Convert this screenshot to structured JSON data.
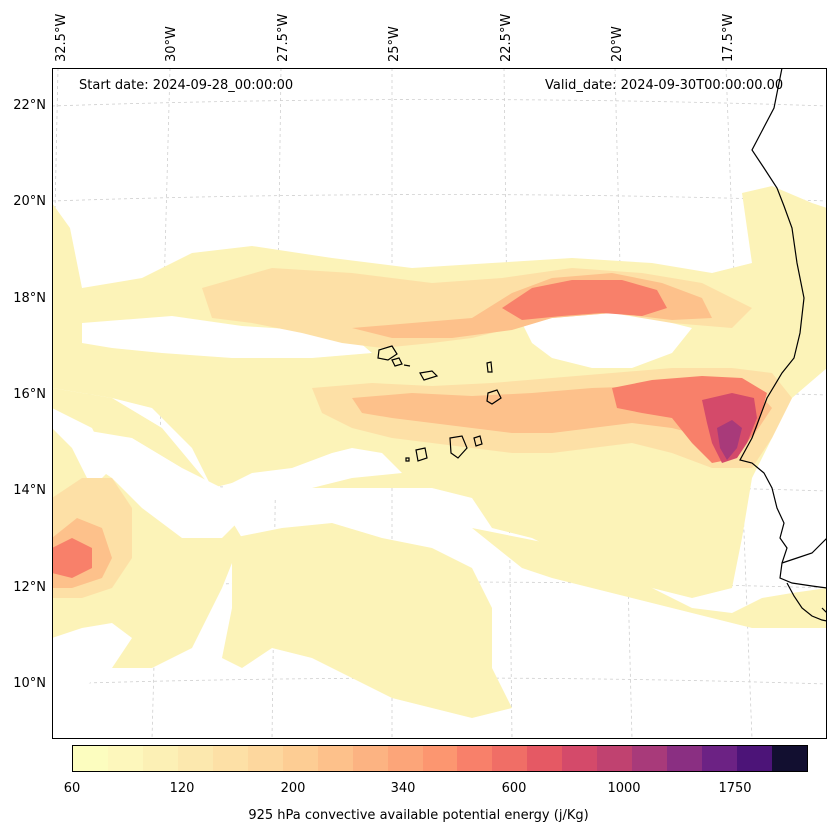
{
  "header": {
    "start_date": "Start date: 2024-09-28_00:00:00",
    "valid_date": "Valid_date: 2024-09-30T00:00:00.00"
  },
  "longitude_labels": [
    "32.5°W",
    "30°W",
    "27.5°W",
    "25°W",
    "22.5°W",
    "20°W",
    "17.5°W"
  ],
  "latitude_labels": [
    "22°N",
    "20°N",
    "18°N",
    "16°N",
    "14°N",
    "12°N",
    "10°N"
  ],
  "colorbar": {
    "label": "925 hPa convective available potential energy (j/Kg)",
    "tick_labels": [
      "60",
      "120",
      "200",
      "340",
      "600",
      "1000",
      "1750"
    ],
    "colors": [
      "#fcfdbf",
      "#fdf7bc",
      "#fcf0b5",
      "#fce8ae",
      "#fde0a6",
      "#fdd79e",
      "#fdcd94",
      "#fdc18b",
      "#fcb382",
      "#fca579",
      "#fc9670",
      "#f8806a",
      "#f06e66",
      "#e55964",
      "#d44a6a",
      "#c04270",
      "#a83a7a",
      "#8a2f82",
      "#6c2284",
      "#4c1478",
      "#120f30"
    ]
  },
  "map_features": {
    "coastline": "West Africa (Mauritania / Senegal / Guinea-Bissau)",
    "islands": "Cape Verde",
    "field": "CAPE shaded contours"
  }
}
